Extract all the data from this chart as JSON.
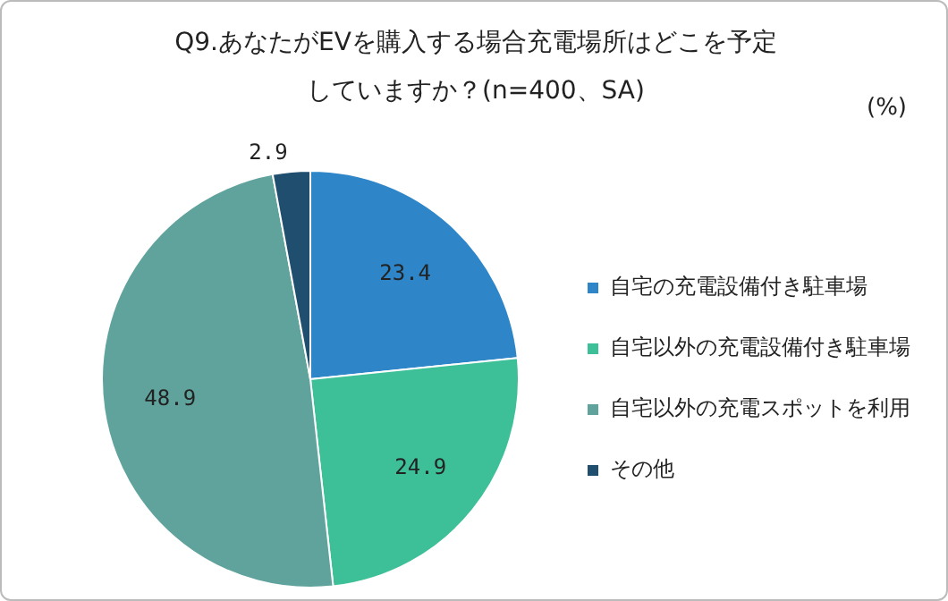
{
  "chart_data": {
    "type": "pie",
    "title": "Q9.あなたがEVを購入する場合充電場所はどこを予定していますか？(n=400、SA)",
    "annotations": [
      "(%)"
    ],
    "categories": [
      "自宅の充電設備付き駐車場",
      "自宅以外の充電設備付き駐車場",
      "自宅以外の充電スポットを利用",
      "その他"
    ],
    "values": [
      23.4,
      24.9,
      48.9,
      2.9
    ],
    "colors": [
      "#2e86c8",
      "#3dbf98",
      "#5fa39c",
      "#1f4e6e"
    ],
    "legend": "right",
    "data_labels": true
  }
}
